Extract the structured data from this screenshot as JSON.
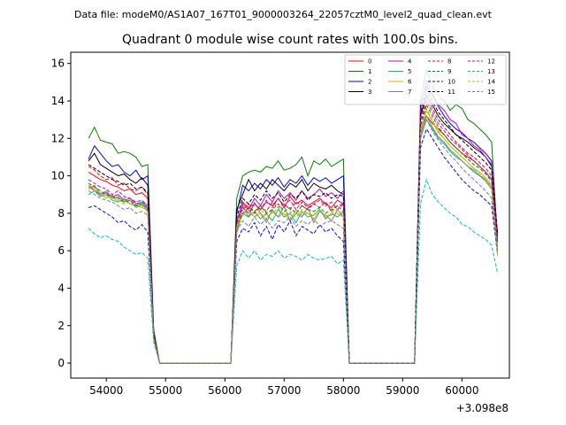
{
  "header": {
    "filename": "Data file: modeM0/AS1A07_167T01_9000003264_22057cztM0_level2_quad_clean.evt"
  },
  "chart_data": {
    "type": "line",
    "title": "Quadrant 0 module wise count rates with 100.0s bins.",
    "xlabel": "",
    "ylabel": "",
    "x_offset_label": "+3.098e8",
    "xlim": [
      53400,
      60800
    ],
    "ylim": [
      -0.8,
      16.6
    ],
    "x_ticks": [
      54000,
      55000,
      56000,
      57000,
      58000,
      59000,
      60000
    ],
    "y_ticks": [
      0,
      2,
      4,
      6,
      8,
      10,
      12,
      14,
      16
    ],
    "grid": false,
    "legend_position": "top-right",
    "legend_columns": 4,
    "x": [
      53700,
      53800,
      53900,
      54000,
      54100,
      54200,
      54300,
      54400,
      54500,
      54600,
      54700,
      54800,
      54900,
      55000,
      55100,
      55200,
      55300,
      55400,
      55500,
      55600,
      55700,
      55800,
      55900,
      56000,
      56100,
      56200,
      56300,
      56400,
      56500,
      56600,
      56700,
      56800,
      56900,
      57000,
      57100,
      57200,
      57300,
      57400,
      57500,
      57600,
      57700,
      57800,
      57900,
      58000,
      58100,
      58200,
      58300,
      58400,
      58500,
      58600,
      58700,
      58800,
      58900,
      59000,
      59100,
      59200,
      59300,
      59400,
      59500,
      59600,
      59700,
      59800,
      59900,
      60000,
      60100,
      60200,
      60300,
      60400,
      60500,
      60600
    ],
    "series": [
      {
        "name": "0",
        "color": "#ff0000",
        "dash": "solid",
        "values": [
          10.2,
          10.0,
          9.8,
          9.7,
          9.5,
          9.4,
          9.2,
          9.3,
          9.0,
          9.1,
          8.8,
          1.5,
          0,
          0,
          0,
          0,
          0,
          0,
          0,
          0,
          0,
          0,
          0,
          0,
          0,
          7.5,
          8.6,
          8.3,
          8.5,
          8.2,
          8.6,
          8.4,
          8.8,
          8.3,
          8.9,
          8.5,
          8.7,
          8.4,
          8.6,
          8.8,
          8.5,
          8.3,
          8.7,
          8.5,
          0,
          0,
          0,
          0,
          0,
          0,
          0,
          0,
          0,
          0,
          0,
          0,
          12.5,
          13.2,
          12.8,
          12.5,
          12.2,
          11.8,
          11.5,
          11.2,
          11.0,
          10.8,
          10.5,
          10.2,
          9.8,
          7.0
        ]
      },
      {
        "name": "1",
        "color": "#008000",
        "dash": "solid",
        "values": [
          12.0,
          12.6,
          11.9,
          11.8,
          11.7,
          11.2,
          11.3,
          11.2,
          11.0,
          10.5,
          10.6,
          1.8,
          0,
          0,
          0,
          0,
          0,
          0,
          0,
          0,
          0,
          0,
          0,
          0,
          0,
          8.8,
          10.0,
          10.2,
          10.3,
          10.2,
          10.5,
          10.4,
          10.8,
          10.3,
          10.4,
          10.6,
          11.0,
          10.0,
          10.8,
          10.6,
          10.9,
          10.5,
          10.7,
          10.9,
          0,
          0,
          0,
          0,
          0,
          0,
          0,
          0,
          0,
          0,
          0,
          0,
          14.0,
          15.7,
          14.8,
          14.3,
          14.0,
          13.5,
          13.8,
          13.6,
          13.0,
          12.8,
          12.5,
          12.2,
          11.8,
          6.5
        ]
      },
      {
        "name": "2",
        "color": "#0000ff",
        "dash": "solid",
        "values": [
          10.9,
          11.6,
          11.2,
          10.8,
          10.5,
          10.6,
          10.2,
          10.0,
          10.3,
          9.8,
          10.0,
          1.6,
          0,
          0,
          0,
          0,
          0,
          0,
          0,
          0,
          0,
          0,
          0,
          0,
          0,
          8.0,
          9.5,
          9.2,
          9.6,
          9.3,
          9.8,
          9.5,
          9.9,
          9.4,
          9.8,
          9.6,
          10.0,
          9.5,
          9.9,
          9.7,
          9.9,
          9.6,
          9.8,
          10.0,
          0,
          0,
          0,
          0,
          0,
          0,
          0,
          0,
          0,
          0,
          0,
          0,
          13.8,
          14.8,
          14.3,
          13.7,
          13.2,
          12.8,
          12.5,
          12.3,
          12.0,
          11.8,
          11.5,
          11.2,
          10.8,
          6.8
        ]
      },
      {
        "name": "3",
        "color": "#000000",
        "dash": "solid",
        "values": [
          10.8,
          11.2,
          10.6,
          10.4,
          10.2,
          10.0,
          10.1,
          9.8,
          9.6,
          9.9,
          9.5,
          1.6,
          0,
          0,
          0,
          0,
          0,
          0,
          0,
          0,
          0,
          0,
          0,
          0,
          0,
          8.2,
          9.0,
          9.8,
          9.2,
          9.6,
          9.3,
          9.8,
          9.5,
          9.2,
          9.6,
          9.4,
          9.8,
          9.2,
          9.6,
          9.4,
          9.3,
          9.5,
          9.2,
          9.0,
          0,
          0,
          0,
          0,
          0,
          0,
          0,
          0,
          0,
          0,
          0,
          0,
          13.2,
          14.3,
          13.8,
          13.2,
          12.8,
          12.5,
          12.2,
          12.0,
          11.8,
          11.5,
          11.3,
          11.0,
          10.5,
          6.9
        ]
      },
      {
        "name": "4",
        "color": "#cc00cc",
        "dash": "solid",
        "values": [
          9.5,
          9.2,
          9.0,
          9.1,
          8.9,
          9.0,
          8.7,
          8.8,
          8.5,
          8.6,
          8.4,
          1.4,
          0,
          0,
          0,
          0,
          0,
          0,
          0,
          0,
          0,
          0,
          0,
          0,
          0,
          7.6,
          8.5,
          8.2,
          8.8,
          8.4,
          9.0,
          8.6,
          9.2,
          8.8,
          9.1,
          8.7,
          9.2,
          8.8,
          9.0,
          9.3,
          8.9,
          9.1,
          8.8,
          9.2,
          0,
          0,
          0,
          0,
          0,
          0,
          0,
          0,
          0,
          0,
          0,
          0,
          13.5,
          15.1,
          14.4,
          13.8,
          13.5,
          13.0,
          12.8,
          12.2,
          12.0,
          11.6,
          11.4,
          11.0,
          10.6,
          6.7
        ]
      },
      {
        "name": "5",
        "color": "#00c080",
        "dash": "solid",
        "values": [
          9.0,
          9.2,
          8.9,
          9.0,
          8.7,
          8.6,
          8.8,
          8.5,
          8.4,
          8.6,
          8.2,
          1.4,
          0,
          0,
          0,
          0,
          0,
          0,
          0,
          0,
          0,
          0,
          0,
          0,
          0,
          7.0,
          8.0,
          7.8,
          8.1,
          7.7,
          8.0,
          7.6,
          8.2,
          7.8,
          8.0,
          7.5,
          8.1,
          7.8,
          7.9,
          8.2,
          7.7,
          8.0,
          7.8,
          8.1,
          0,
          0,
          0,
          0,
          0,
          0,
          0,
          0,
          0,
          0,
          0,
          0,
          12.0,
          13.0,
          12.5,
          12.0,
          11.7,
          11.3,
          11.0,
          10.8,
          10.5,
          10.3,
          10.0,
          9.8,
          9.4,
          6.2
        ]
      },
      {
        "name": "6",
        "color": "#c8b400",
        "dash": "solid",
        "values": [
          9.5,
          9.3,
          9.0,
          8.8,
          9.0,
          8.6,
          8.7,
          8.5,
          8.4,
          8.3,
          8.2,
          1.4,
          0,
          0,
          0,
          0,
          0,
          0,
          0,
          0,
          0,
          0,
          0,
          0,
          0,
          7.2,
          7.9,
          8.2,
          7.8,
          8.0,
          7.7,
          8.1,
          7.8,
          8.0,
          7.6,
          8.2,
          7.9,
          8.0,
          7.7,
          8.1,
          7.8,
          7.9,
          8.0,
          7.8,
          0,
          0,
          0,
          0,
          0,
          0,
          0,
          0,
          0,
          0,
          0,
          0,
          12.3,
          13.5,
          12.9,
          12.3,
          12.0,
          11.6,
          11.3,
          11.0,
          10.7,
          10.4,
          10.2,
          9.9,
          9.5,
          5.8
        ]
      },
      {
        "name": "7",
        "color": "#808080",
        "dash": "solid",
        "values": [
          9.3,
          9.5,
          9.0,
          9.2,
          8.8,
          8.9,
          8.6,
          8.7,
          8.3,
          8.5,
          8.1,
          1.4,
          0,
          0,
          0,
          0,
          0,
          0,
          0,
          0,
          0,
          0,
          0,
          0,
          0,
          7.0,
          8.4,
          7.8,
          8.6,
          8.0,
          7.5,
          8.2,
          7.8,
          8.4,
          7.6,
          8.0,
          7.8,
          8.3,
          7.5,
          8.1,
          7.9,
          7.6,
          8.2,
          7.8,
          0,
          0,
          0,
          0,
          0,
          0,
          0,
          0,
          0,
          0,
          0,
          0,
          12.2,
          13.2,
          12.6,
          12.1,
          11.8,
          11.4,
          11.1,
          10.8,
          10.5,
          10.2,
          10.0,
          9.7,
          9.3,
          6.0
        ]
      },
      {
        "name": "8",
        "color": "#ff0000",
        "dash": "dashed",
        "values": [
          10.5,
          10.3,
          10.0,
          9.8,
          9.9,
          9.5,
          9.6,
          9.3,
          9.2,
          9.4,
          9.0,
          1.5,
          0,
          0,
          0,
          0,
          0,
          0,
          0,
          0,
          0,
          0,
          0,
          0,
          0,
          7.6,
          8.2,
          8.5,
          8.0,
          8.4,
          8.1,
          8.6,
          8.3,
          8.5,
          8.2,
          8.6,
          8.4,
          8.2,
          8.5,
          8.3,
          8.6,
          8.1,
          8.4,
          8.5,
          0,
          0,
          0,
          0,
          0,
          0,
          0,
          0,
          0,
          0,
          0,
          0,
          13.0,
          14.2,
          13.6,
          13.0,
          12.6,
          12.2,
          11.8,
          11.5,
          11.2,
          11.0,
          10.7,
          10.4,
          10.0,
          7.0
        ]
      },
      {
        "name": "9",
        "color": "#008000",
        "dash": "dashed",
        "values": [
          9.6,
          9.4,
          9.2,
          9.0,
          8.9,
          8.8,
          8.6,
          8.7,
          8.4,
          8.5,
          8.3,
          1.4,
          0,
          0,
          0,
          0,
          0,
          0,
          0,
          0,
          0,
          0,
          0,
          0,
          0,
          7.4,
          8.0,
          8.3,
          8.1,
          8.4,
          8.0,
          8.2,
          8.5,
          8.1,
          8.3,
          8.0,
          8.4,
          8.2,
          8.1,
          8.3,
          8.0,
          8.2,
          8.4,
          8.1,
          0,
          0,
          0,
          0,
          0,
          0,
          0,
          0,
          0,
          0,
          0,
          0,
          12.6,
          13.8,
          13.2,
          12.6,
          12.2,
          11.8,
          11.5,
          11.2,
          10.9,
          10.6,
          10.4,
          10.1,
          9.7,
          6.4
        ]
      },
      {
        "name": "10",
        "color": "#0000ff",
        "dash": "dashed",
        "values": [
          8.3,
          8.4,
          8.2,
          8.0,
          7.8,
          7.5,
          7.6,
          7.3,
          7.1,
          7.4,
          7.0,
          1.3,
          0,
          0,
          0,
          0,
          0,
          0,
          0,
          0,
          0,
          0,
          0,
          0,
          0,
          6.5,
          7.2,
          7.0,
          7.5,
          6.8,
          7.3,
          6.6,
          7.4,
          7.0,
          7.6,
          6.8,
          7.3,
          7.1,
          6.9,
          7.4,
          7.0,
          7.2,
          6.8,
          6.5,
          0,
          0,
          0,
          0,
          0,
          0,
          0,
          0,
          0,
          0,
          0,
          0,
          11.5,
          12.5,
          12.0,
          11.5,
          11.0,
          10.6,
          10.2,
          9.8,
          9.5,
          9.2,
          9.0,
          8.7,
          8.4,
          5.8
        ]
      },
      {
        "name": "11",
        "color": "#000000",
        "dash": "dashed",
        "values": [
          10.6,
          10.4,
          10.2,
          10.0,
          9.8,
          9.7,
          9.5,
          9.6,
          9.3,
          9.4,
          9.1,
          1.5,
          0,
          0,
          0,
          0,
          0,
          0,
          0,
          0,
          0,
          0,
          0,
          0,
          0,
          7.8,
          8.8,
          8.5,
          9.0,
          8.7,
          9.2,
          8.8,
          9.1,
          8.6,
          9.0,
          8.8,
          9.2,
          8.7,
          9.0,
          8.9,
          9.1,
          8.8,
          9.0,
          8.9,
          0,
          0,
          0,
          0,
          0,
          0,
          0,
          0,
          0,
          0,
          0,
          0,
          13.3,
          14.6,
          14.0,
          13.4,
          13.0,
          12.6,
          12.2,
          11.9,
          11.6,
          11.3,
          11.0,
          10.7,
          10.3,
          6.8
        ]
      },
      {
        "name": "12",
        "color": "#cc00cc",
        "dash": "dashed",
        "values": [
          9.8,
          9.6,
          9.4,
          9.3,
          9.0,
          9.2,
          8.9,
          8.8,
          8.6,
          8.7,
          8.4,
          1.4,
          0,
          0,
          0,
          0,
          0,
          0,
          0,
          0,
          0,
          0,
          0,
          0,
          0,
          7.5,
          8.3,
          8.0,
          8.5,
          8.2,
          8.7,
          8.3,
          8.8,
          8.4,
          8.7,
          8.2,
          8.6,
          8.3,
          8.5,
          8.7,
          8.4,
          8.6,
          8.2,
          8.5,
          0,
          0,
          0,
          0,
          0,
          0,
          0,
          0,
          0,
          0,
          0,
          0,
          12.8,
          14.0,
          13.4,
          12.8,
          12.4,
          12.0,
          11.7,
          11.4,
          11.1,
          10.8,
          10.5,
          10.2,
          9.8,
          6.6
        ]
      },
      {
        "name": "13",
        "color": "#00bfbf",
        "dash": "dashed",
        "values": [
          7.2,
          6.9,
          6.7,
          6.8,
          6.6,
          6.5,
          6.2,
          6.0,
          5.8,
          5.9,
          5.6,
          1.1,
          0,
          0,
          0,
          0,
          0,
          0,
          0,
          0,
          0,
          0,
          0,
          0,
          0,
          5.2,
          6.0,
          5.6,
          6.0,
          5.5,
          5.8,
          5.7,
          6.0,
          5.6,
          5.8,
          5.7,
          5.5,
          5.8,
          5.6,
          5.5,
          5.6,
          5.7,
          5.3,
          5.5,
          0,
          0,
          0,
          0,
          0,
          0,
          0,
          0,
          0,
          0,
          0,
          0,
          8.5,
          9.8,
          9.0,
          8.6,
          8.3,
          8.0,
          7.8,
          7.4,
          7.3,
          7.0,
          6.8,
          6.6,
          6.3,
          4.8
        ]
      },
      {
        "name": "14",
        "color": "#c8b400",
        "dash": "dashed",
        "values": [
          9.4,
          9.2,
          9.1,
          8.9,
          8.8,
          8.7,
          8.5,
          8.6,
          8.3,
          8.4,
          8.1,
          1.4,
          0,
          0,
          0,
          0,
          0,
          0,
          0,
          0,
          0,
          0,
          0,
          0,
          0,
          7.3,
          7.9,
          8.1,
          7.8,
          8.2,
          7.9,
          8.0,
          8.3,
          7.9,
          8.1,
          7.8,
          8.2,
          8.0,
          7.9,
          8.1,
          7.8,
          8.0,
          8.2,
          7.9,
          0,
          0,
          0,
          0,
          0,
          0,
          0,
          0,
          0,
          0,
          0,
          0,
          12.4,
          13.6,
          13.0,
          12.4,
          12.0,
          11.6,
          11.3,
          11.0,
          10.7,
          10.4,
          10.1,
          9.8,
          9.4,
          5.7
        ]
      },
      {
        "name": "15",
        "color": "#808080",
        "dash": "dashed",
        "values": [
          9.2,
          9.0,
          8.8,
          8.7,
          8.6,
          8.4,
          8.2,
          8.3,
          8.0,
          8.1,
          7.9,
          1.3,
          0,
          0,
          0,
          0,
          0,
          0,
          0,
          0,
          0,
          0,
          0,
          0,
          0,
          7.0,
          7.6,
          7.3,
          7.8,
          7.4,
          7.7,
          7.2,
          7.6,
          7.5,
          7.8,
          7.3,
          7.6,
          7.4,
          7.7,
          7.3,
          7.5,
          7.6,
          7.4,
          7.2,
          0,
          0,
          0,
          0,
          0,
          0,
          0,
          0,
          0,
          0,
          0,
          0,
          12.0,
          13.0,
          12.4,
          11.9,
          11.5,
          11.1,
          10.8,
          10.4,
          10.1,
          9.8,
          9.5,
          9.2,
          8.8,
          5.9
        ]
      }
    ]
  }
}
